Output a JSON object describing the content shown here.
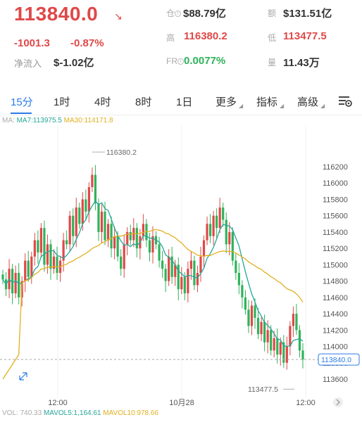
{
  "header": {
    "price": "113840.0",
    "change": "-1001.3",
    "change_pct": "-0.87%",
    "netflow_label": "净流入",
    "netflow_value": "$-1.02亿",
    "stats": {
      "cang_label": "仓",
      "cang_value": "$88.79亿",
      "e_label": "额",
      "e_value": "$131.51亿",
      "gao_label": "高",
      "gao_value": "116380.2",
      "di_label": "低",
      "di_value": "113477.5",
      "fr_label": "FR",
      "fr_value": "0.0077%",
      "liang_label": "量",
      "liang_value": "11.43万"
    }
  },
  "tabs": [
    {
      "label": "15分",
      "active": true
    },
    {
      "label": "1时"
    },
    {
      "label": "4时"
    },
    {
      "label": "8时"
    },
    {
      "label": "1日"
    },
    {
      "label": "更多"
    },
    {
      "label": "指标"
    },
    {
      "label": "高级"
    }
  ],
  "indicators": {
    "ma_prefix": "MA:",
    "ma7": "MA7:113975.5",
    "ma30": "MA30:114171.8",
    "vol": "VOL: 740.33",
    "mavol5": "MAVOL5:1,164.61",
    "mavol10": "MAVOL10:978.66"
  },
  "colors": {
    "up": "#e04848",
    "down": "#2fb35a",
    "accent": "#2a7be4",
    "ma7": "#26a69a",
    "ma30": "#e0b020"
  },
  "chart_data": {
    "type": "candlestick",
    "y_ticks": [
      "116200",
      "116000",
      "115800",
      "115600",
      "115400",
      "115200",
      "115000",
      "114800",
      "114600",
      "114400",
      "114200",
      "114000",
      "113800",
      "113600"
    ],
    "x_ticks": [
      "12:00",
      "10月28",
      "12:00"
    ],
    "current_price_label": "113840.0",
    "high_label": "116380.2",
    "low_label": "113477.5",
    "ylim": [
      113450,
      116450
    ]
  }
}
